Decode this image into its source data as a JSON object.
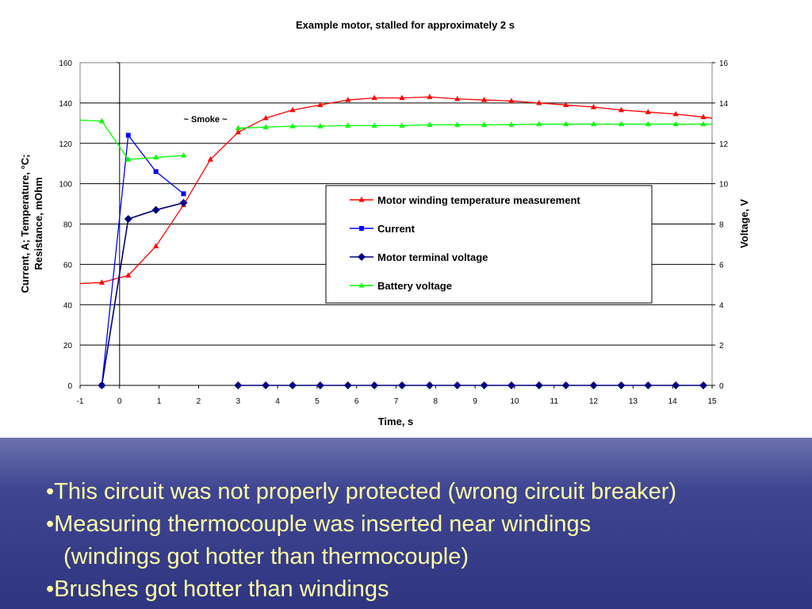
{
  "chart_data": {
    "type": "line",
    "title": "Example motor, stalled for approximately 2 s",
    "xlabel": "Time, s",
    "ylabel_left": "Current, A; Temperature, °C; Resistance, mOhm",
    "ylabel_left_lines": [
      "Current, A; Temperature, °C;",
      "Resistance, mOhm"
    ],
    "ylabel_right": "Voltage, V",
    "xlim": [
      -1,
      15
    ],
    "ylim_left": [
      0,
      160
    ],
    "ylim_right": [
      0,
      16
    ],
    "xticks": [
      -1,
      0,
      1,
      2,
      3,
      4,
      5,
      6,
      7,
      8,
      9,
      10,
      11,
      12,
      13,
      14,
      15
    ],
    "yticks_left": [
      0,
      20,
      40,
      60,
      80,
      100,
      120,
      140,
      160
    ],
    "yticks_right": [
      0,
      2,
      4,
      6,
      8,
      10,
      12,
      14,
      16
    ],
    "grid": "horizontal",
    "legend_position": "center-right",
    "annotation": "~ Smoke ~",
    "series": [
      {
        "name": "Motor winding temperature measurement",
        "axis": "left",
        "color": "#ff0000",
        "marker": "triangle",
        "x": [
          -1,
          -0.45,
          0.22,
          0.92,
          1.62,
          2.3,
          3.0,
          3.7,
          4.38,
          5.08,
          5.78,
          6.45,
          7.15,
          7.85,
          8.55,
          9.23,
          9.92,
          10.62,
          11.3,
          12.0,
          12.7,
          13.38,
          14.08,
          14.78,
          15
        ],
        "y": [
          50.5,
          51,
          54.5,
          69,
          89.5,
          112,
          125.5,
          132.5,
          136.5,
          139,
          141.5,
          142.5,
          142.5,
          143,
          142,
          141.5,
          141,
          140,
          139,
          138,
          136.5,
          135.5,
          134.5,
          133,
          132.5
        ]
      },
      {
        "name": "Current",
        "axis": "left",
        "color": "#0000ff",
        "marker": "square",
        "x": [
          -0.45,
          0.22,
          0.92,
          1.62
        ],
        "y": [
          0,
          124,
          106,
          95
        ]
      },
      {
        "name": "Motor terminal voltage",
        "axis": "right",
        "color": "#000080",
        "marker": "diamond",
        "segments": [
          {
            "x": [
              -0.45,
              0.22,
              0.92,
              1.62
            ],
            "y": [
              0,
              8.25,
              8.7,
              9.05
            ]
          },
          {
            "x": [
              3.0,
              3.7,
              4.38,
              5.08,
              5.78,
              6.45,
              7.15,
              7.85,
              8.55,
              9.23,
              9.92,
              10.62,
              11.3,
              12.0,
              12.7,
              13.38,
              14.08,
              14.78
            ],
            "y": [
              0,
              0,
              0,
              0,
              0,
              0,
              0,
              0,
              0,
              0,
              0,
              0,
              0,
              0,
              0,
              0,
              0,
              0
            ]
          }
        ]
      },
      {
        "name": "Battery voltage",
        "axis": "right",
        "color": "#00ff00",
        "marker": "triangle",
        "segments": [
          {
            "x": [
              -1,
              -0.45,
              0.22,
              0.92,
              1.62
            ],
            "y": [
              13.15,
              13.1,
              11.2,
              11.3,
              11.4
            ]
          },
          {
            "x": [
              3.0,
              3.7,
              4.38,
              5.08,
              5.78,
              6.45,
              7.15,
              7.85,
              8.55,
              9.23,
              9.92,
              10.62,
              11.3,
              12.0,
              12.7,
              13.38,
              14.08,
              14.78,
              15
            ],
            "y": [
              12.75,
              12.8,
              12.85,
              12.85,
              12.88,
              12.88,
              12.88,
              12.92,
              12.92,
              12.92,
              12.93,
              12.95,
              12.95,
              12.95,
              12.95,
              12.95,
              12.95,
              12.95,
              12.95
            ]
          }
        ]
      }
    ]
  },
  "bullets": [
    "•This circuit was not properly protected (wrong circuit breaker)",
    "•Measuring thermocouple was inserted near windings",
    "(windings got hotter than thermocouple)",
    "•Brushes got hotter than windings"
  ],
  "colors": {
    "panel_top": "#6d72ad",
    "panel_bottom": "#2f357f",
    "bullet_text": "#ffffa6"
  }
}
